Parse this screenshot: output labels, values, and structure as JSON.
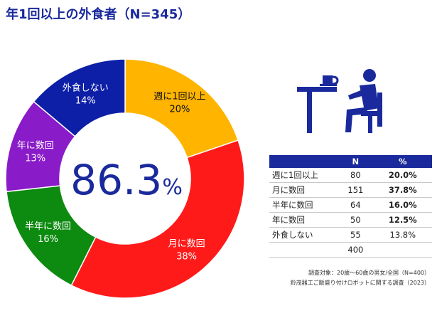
{
  "title": "年1回以上の外食者（N=345）",
  "center_value": "86.3",
  "center_unit": "%",
  "chart_data": {
    "type": "pie",
    "title": "年1回以上の外食者（N=345）",
    "slices": [
      {
        "label": "週に1回以上",
        "value": 20,
        "value_label": "20%",
        "color": "#ffb400"
      },
      {
        "label": "月に数回",
        "value": 38,
        "value_label": "38%",
        "color": "#ff1a1a"
      },
      {
        "label": "半年に数回",
        "value": 16,
        "value_label": "16%",
        "color": "#0d8a10"
      },
      {
        "label": "年に数回",
        "value": 13,
        "value_label": "13%",
        "color": "#8a1bc9"
      },
      {
        "label": "外食しない",
        "value": 14,
        "value_label": "14%",
        "color": "#0d1fa6"
      }
    ]
  },
  "table": {
    "headers": [
      "",
      "N",
      "%"
    ],
    "rows": [
      {
        "label": "週に1回以上",
        "n": "80",
        "pct": "20.0%",
        "bold": true
      },
      {
        "label": "月に数回",
        "n": "151",
        "pct": "37.8%",
        "bold": true
      },
      {
        "label": "半年に数回",
        "n": "64",
        "pct": "16.0%",
        "bold": true
      },
      {
        "label": "年に数回",
        "n": "50",
        "pct": "12.5%",
        "bold": true
      },
      {
        "label": "外食しない",
        "n": "55",
        "pct": "13.8%",
        "bold": false
      }
    ],
    "total": "400"
  },
  "notes": [
    "調査対象：20歳〜60歳の男女/全国（N=400）",
    "鈴茂器工ご飯盛り付けロボットに関する調査（2023）"
  ],
  "icon": "person-at-table-icon"
}
